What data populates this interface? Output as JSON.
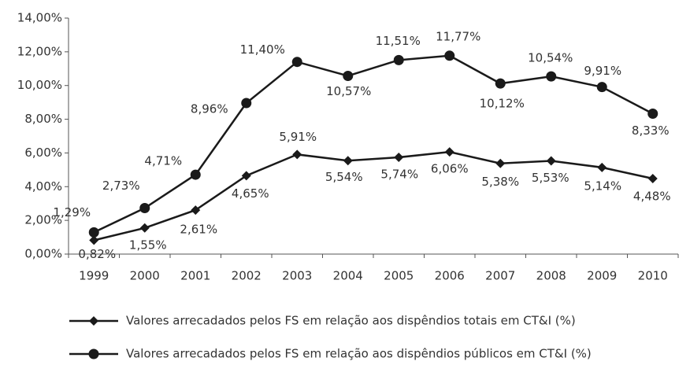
{
  "chart_data": {
    "type": "line",
    "categories": [
      "1999",
      "2000",
      "2001",
      "2002",
      "2003",
      "2004",
      "2005",
      "2006",
      "2007",
      "2008",
      "2009",
      "2010"
    ],
    "ylim": [
      0,
      14
    ],
    "yticks": [
      {
        "value": 0,
        "label": "0,00%"
      },
      {
        "value": 2,
        "label": "2,00%"
      },
      {
        "value": 4,
        "label": "4,00%"
      },
      {
        "value": 6,
        "label": "6,00%"
      },
      {
        "value": 8,
        "label": "8,00%"
      },
      {
        "value": 10,
        "label": "10,00%"
      },
      {
        "value": 12,
        "label": "12,00%"
      },
      {
        "value": 14,
        "label": "14,00%"
      }
    ],
    "grid": false,
    "legend": "bottom",
    "series": [
      {
        "name": "Valores arrecadados pelos FS em relação aos dispêndios totais em CT&I (%)",
        "color": "#1a1a1a",
        "marker": "diamond",
        "values": [
          0.82,
          1.55,
          2.61,
          4.65,
          5.91,
          5.54,
          5.74,
          6.06,
          5.38,
          5.53,
          5.14,
          4.48
        ],
        "value_labels": [
          "0,82%",
          "1,55%",
          "2,61%",
          "4,65%",
          "5,91%",
          "5,54%",
          "5,74%",
          "6,06%",
          "5,38%",
          "5,53%",
          "5,14%",
          "4,48%"
        ]
      },
      {
        "name": "Valores arrecadados pelos FS em relação aos dispêndios públicos em CT&I (%)",
        "color": "#1a1a1a",
        "marker": "circle",
        "values": [
          1.29,
          2.73,
          4.71,
          8.96,
          11.4,
          10.57,
          11.51,
          11.77,
          10.12,
          10.54,
          9.91,
          8.33
        ],
        "value_labels": [
          "1,29%",
          "2,73%",
          "4,71%",
          "8,96%",
          "11,40%",
          "10,57%",
          "11,51%",
          "11,77%",
          "10,12%",
          "10,54%",
          "9,91%",
          "8,33%"
        ]
      }
    ]
  }
}
